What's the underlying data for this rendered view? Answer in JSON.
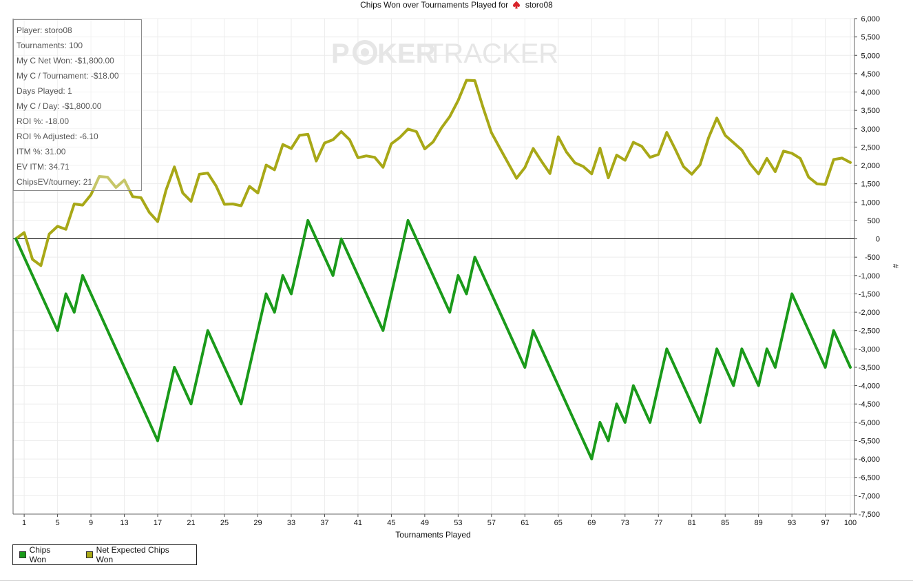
{
  "chart_data": {
    "type": "line",
    "title": "Chips Won over Tournaments Played for",
    "title_player": "storo08",
    "xlabel": "Tournaments Played",
    "ylabel": "#",
    "xlim": [
      0,
      100
    ],
    "ylim": [
      -7500,
      6000
    ],
    "x_ticks": [
      1,
      5,
      9,
      13,
      17,
      21,
      25,
      29,
      33,
      37,
      41,
      45,
      49,
      53,
      57,
      61,
      65,
      69,
      73,
      77,
      81,
      85,
      89,
      93,
      97,
      100
    ],
    "y_ticks": [
      6000,
      5500,
      5000,
      4500,
      4000,
      3500,
      3000,
      2500,
      2000,
      1500,
      1000,
      500,
      0,
      -500,
      -1000,
      -1500,
      -2000,
      -2500,
      -3000,
      -3500,
      -4000,
      -4500,
      -5000,
      -5500,
      -6000,
      -6500,
      -7000,
      -7500
    ],
    "y_tick_labels": [
      "6,000",
      "5,500",
      "5,000",
      "4,500",
      "4,000",
      "3,500",
      "3,000",
      "2,500",
      "2,000",
      "1,500",
      "1,000",
      "500",
      "0",
      "-500",
      "-1,000",
      "-1,500",
      "-2,000",
      "-2,500",
      "-3,000",
      "-3,500",
      "-4,000",
      "-4,500",
      "-5,000",
      "-5,500",
      "-6,000",
      "-6,500",
      "-7,000",
      "-7,500"
    ],
    "grid": true,
    "legend_position": "bottom-left",
    "series": [
      {
        "name": "Chips Won",
        "color": "#1a9a1a",
        "points": [
          [
            0,
            0
          ],
          [
            5,
            -2500
          ],
          [
            6,
            -1500
          ],
          [
            7,
            -2000
          ],
          [
            8,
            -1000
          ],
          [
            17,
            -5500
          ],
          [
            19,
            -3500
          ],
          [
            21,
            -4500
          ],
          [
            23,
            -2500
          ],
          [
            27,
            -4500
          ],
          [
            30,
            -1500
          ],
          [
            31,
            -2000
          ],
          [
            32,
            -1000
          ],
          [
            33,
            -1500
          ],
          [
            35,
            500
          ],
          [
            38,
            -1000
          ],
          [
            39,
            0
          ],
          [
            44,
            -2500
          ],
          [
            47,
            500
          ],
          [
            52,
            -2000
          ],
          [
            53,
            -1000
          ],
          [
            54,
            -1500
          ],
          [
            55,
            -500
          ],
          [
            61,
            -3500
          ],
          [
            62,
            -2500
          ],
          [
            69,
            -6000
          ],
          [
            70,
            -5000
          ],
          [
            71,
            -5500
          ],
          [
            72,
            -4500
          ],
          [
            73,
            -5000
          ],
          [
            74,
            -4000
          ],
          [
            76,
            -5000
          ],
          [
            78,
            -3000
          ],
          [
            82,
            -5000
          ],
          [
            84,
            -3000
          ],
          [
            86,
            -4000
          ],
          [
            87,
            -3000
          ],
          [
            89,
            -4000
          ],
          [
            90,
            -3000
          ],
          [
            91,
            -3500
          ],
          [
            93,
            -1500
          ],
          [
            97,
            -3500
          ],
          [
            98,
            -2500
          ],
          [
            100,
            -3500
          ]
        ]
      },
      {
        "name": "Net Expected Chips Won",
        "color": "#a8a817",
        "points": [
          [
            0,
            0
          ],
          [
            1,
            170
          ],
          [
            2,
            -560
          ],
          [
            3,
            -730
          ],
          [
            4,
            130
          ],
          [
            5,
            340
          ],
          [
            6,
            260
          ],
          [
            7,
            950
          ],
          [
            8,
            920
          ],
          [
            9,
            1200
          ],
          [
            10,
            1700
          ],
          [
            11,
            1680
          ],
          [
            12,
            1400
          ],
          [
            13,
            1600
          ],
          [
            14,
            1150
          ],
          [
            15,
            1120
          ],
          [
            16,
            720
          ],
          [
            17,
            470
          ],
          [
            18,
            1330
          ],
          [
            19,
            1960
          ],
          [
            20,
            1250
          ],
          [
            21,
            1020
          ],
          [
            22,
            1760
          ],
          [
            23,
            1790
          ],
          [
            24,
            1440
          ],
          [
            25,
            940
          ],
          [
            26,
            950
          ],
          [
            27,
            900
          ],
          [
            28,
            1430
          ],
          [
            29,
            1250
          ],
          [
            30,
            2010
          ],
          [
            31,
            1880
          ],
          [
            32,
            2570
          ],
          [
            33,
            2460
          ],
          [
            34,
            2820
          ],
          [
            35,
            2850
          ],
          [
            36,
            2120
          ],
          [
            37,
            2610
          ],
          [
            38,
            2700
          ],
          [
            39,
            2920
          ],
          [
            40,
            2700
          ],
          [
            41,
            2210
          ],
          [
            42,
            2260
          ],
          [
            43,
            2220
          ],
          [
            44,
            1950
          ],
          [
            45,
            2590
          ],
          [
            46,
            2760
          ],
          [
            47,
            2990
          ],
          [
            48,
            2920
          ],
          [
            49,
            2450
          ],
          [
            50,
            2640
          ],
          [
            51,
            3020
          ],
          [
            52,
            3330
          ],
          [
            53,
            3770
          ],
          [
            54,
            4320
          ],
          [
            55,
            4310
          ],
          [
            56,
            3570
          ],
          [
            57,
            2890
          ],
          [
            58,
            2470
          ],
          [
            59,
            2060
          ],
          [
            60,
            1650
          ],
          [
            61,
            1940
          ],
          [
            62,
            2460
          ],
          [
            63,
            2110
          ],
          [
            64,
            1780
          ],
          [
            65,
            2780
          ],
          [
            66,
            2360
          ],
          [
            67,
            2070
          ],
          [
            68,
            1970
          ],
          [
            69,
            1770
          ],
          [
            70,
            2470
          ],
          [
            71,
            1660
          ],
          [
            72,
            2280
          ],
          [
            73,
            2140
          ],
          [
            74,
            2630
          ],
          [
            75,
            2520
          ],
          [
            76,
            2220
          ],
          [
            77,
            2300
          ],
          [
            78,
            2900
          ],
          [
            79,
            2450
          ],
          [
            80,
            1970
          ],
          [
            81,
            1760
          ],
          [
            82,
            2020
          ],
          [
            83,
            2750
          ],
          [
            84,
            3290
          ],
          [
            85,
            2820
          ],
          [
            86,
            2620
          ],
          [
            87,
            2420
          ],
          [
            88,
            2040
          ],
          [
            89,
            1770
          ],
          [
            90,
            2190
          ],
          [
            91,
            1830
          ],
          [
            92,
            2390
          ],
          [
            93,
            2330
          ],
          [
            94,
            2190
          ],
          [
            95,
            1680
          ],
          [
            96,
            1500
          ],
          [
            97,
            1480
          ],
          [
            98,
            2160
          ],
          [
            99,
            2200
          ],
          [
            100,
            2080
          ]
        ]
      }
    ]
  },
  "stats": [
    "Player: storo08",
    "Tournaments: 100",
    "My C Net Won: -$1,800.00",
    "My C / Tournament: -$18.00",
    "Days Played: 1",
    "My C / Day: -$1,800.00",
    "ROI %: -18.00",
    "ROI % Adjusted: -6.10",
    "ITM %: 31.00",
    "EV ITM: 34.71",
    "ChipsEV/tourney: 21"
  ],
  "watermark": {
    "part1": "P",
    "part2": "KER",
    "part3": "TRACKER"
  },
  "colors": {
    "grid": "#ececec",
    "zero_line": "#000000",
    "watermark": "#e6e6e6",
    "spade": "#d8232a"
  }
}
